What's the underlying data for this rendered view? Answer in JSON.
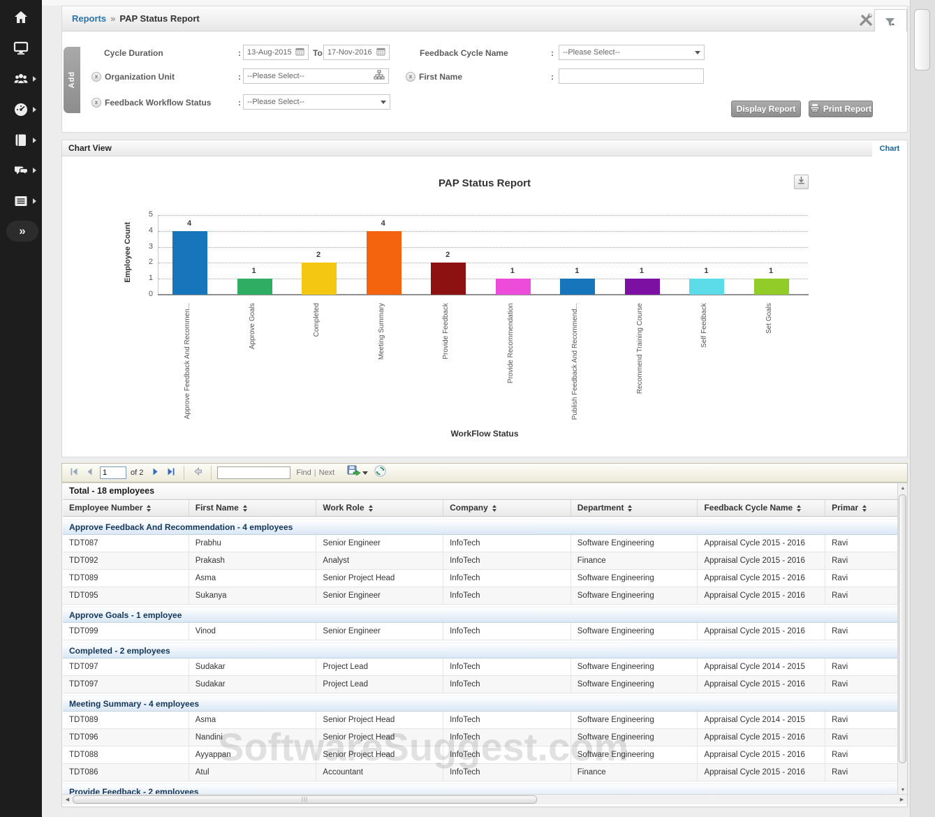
{
  "sidebar": {
    "items": [
      {
        "icon": "home-icon",
        "has_submenu": false
      },
      {
        "icon": "monitor-icon",
        "has_submenu": false
      },
      {
        "icon": "people-icon",
        "has_submenu": true
      },
      {
        "icon": "dashboard-gauge-icon",
        "has_submenu": true
      },
      {
        "icon": "book-icon",
        "has_submenu": true
      },
      {
        "icon": "chat-icon",
        "has_submenu": true
      },
      {
        "icon": "news-list-icon",
        "has_submenu": true
      }
    ],
    "collapse_glyph": "»"
  },
  "header": {
    "breadcrumb_section": "Reports",
    "breadcrumb_separator": "»",
    "breadcrumb_page": "PAP Status Report"
  },
  "filters": {
    "add_tab_label": "Add",
    "colon": ":",
    "cycle_duration": {
      "label": "Cycle Duration",
      "from_value": "13-Aug-2015",
      "to_label": "To",
      "to_value": "17-Nov-2016"
    },
    "feedback_cycle_name": {
      "label": "Feedback Cycle Name",
      "value": "--Please Select--"
    },
    "organization_unit": {
      "label": "Organization Unit",
      "value": "--Please Select--"
    },
    "first_name": {
      "label": "First Name",
      "value": ""
    },
    "feedback_workflow_status": {
      "label": "Feedback Workflow Status",
      "value": "--Please Select--"
    },
    "display_report_label": "Display Report",
    "print_report_label": "Print Report"
  },
  "chart_section": {
    "panel_title": "Chart View",
    "chart_link": "Chart"
  },
  "chart_data": {
    "type": "bar",
    "title": "PAP Status Report",
    "xlabel": "WorkFlow Status",
    "ylabel": "Employee Count",
    "ylim": [
      0,
      5
    ],
    "yticks": [
      0,
      1,
      2,
      3,
      4,
      5
    ],
    "grid": "dotted-horizontal",
    "legend": "none",
    "categories": [
      "Approve Feedback And Recommen...",
      "Approve Goals",
      "Completed",
      "Meeting Summary",
      "Provide Feedback",
      "Provide Recommendation",
      "Publish Feedback And Recommend...",
      "Recommend Training Course",
      "Self Feedback",
      "Set Goals"
    ],
    "values": [
      4,
      1,
      2,
      4,
      2,
      1,
      1,
      1,
      1,
      1
    ],
    "colors": [
      "#1776bb",
      "#2ead63",
      "#f3c712",
      "#f4640e",
      "#8e1111",
      "#ed4cdb",
      "#1776bb",
      "#7b10a2",
      "#5cdbe9",
      "#91cc29"
    ]
  },
  "toolbar": {
    "page_input": "1",
    "of_pages": "of 2",
    "search_value": "",
    "find_label": "Find",
    "separator": "|",
    "next_label": "Next"
  },
  "table": {
    "total_header": "Total - 18 employees",
    "columns": [
      "Employee Number",
      "First Name",
      "Work Role",
      "Company",
      "Department",
      "Feedback Cycle Name",
      "Primar"
    ],
    "groups": [
      {
        "header": "Approve Feedback And Recommendation - 4 employees",
        "rows": [
          [
            "TDT087",
            "Prabhu",
            "Senior Engineer",
            "InfoTech",
            "Software Engineering",
            "Appraisal Cycle 2015 - 2016",
            "Ravi"
          ],
          [
            "TDT092",
            "Prakash",
            "Analyst",
            "InfoTech",
            "Finance",
            "Appraisal Cycle 2015 - 2016",
            "Ravi"
          ],
          [
            "TDT089",
            "Asma",
            "Senior Project Head",
            "InfoTech",
            "Software Engineering",
            "Appraisal Cycle 2015 - 2016",
            "Ravi"
          ],
          [
            "TDT095",
            "Sukanya",
            "Senior Engineer",
            "InfoTech",
            "Software Engineering",
            "Appraisal Cycle 2015 - 2016",
            "Ravi"
          ]
        ]
      },
      {
        "header": "Approve Goals - 1 employee",
        "rows": [
          [
            "TDT099",
            "Vinod",
            "Senior Engineer",
            "InfoTech",
            "Software Engineering",
            "Appraisal Cycle 2015 - 2016",
            "Ravi"
          ]
        ]
      },
      {
        "header": "Completed - 2 employees",
        "rows": [
          [
            "TDT097",
            "Sudakar",
            "Project Lead",
            "InfoTech",
            "Software Engineering",
            "Appraisal Cycle 2014 - 2015",
            "Ravi"
          ],
          [
            "TDT097",
            "Sudakar",
            "Project Lead",
            "InfoTech",
            "Software Engineering",
            "Appraisal Cycle 2015 - 2016",
            "Ravi"
          ]
        ]
      },
      {
        "header": "Meeting Summary - 4 employees",
        "rows": [
          [
            "TDT089",
            "Asma",
            "Senior Project Head",
            "InfoTech",
            "Software Engineering",
            "Appraisal Cycle 2014 - 2015",
            "Ravi"
          ],
          [
            "TDT096",
            "Nandini",
            "Senior Project Head",
            "InfoTech",
            "Software Engineering",
            "Appraisal Cycle 2015 - 2016",
            "Ravi"
          ],
          [
            "TDT088",
            "Ayyappan",
            "Senior Project Head",
            "InfoTech",
            "Software Engineering",
            "Appraisal Cycle 2015 - 2016",
            "Ravi"
          ],
          [
            "TDT086",
            "Atul",
            "Accountant",
            "InfoTech",
            "Finance",
            "Appraisal Cycle 2015 - 2016",
            "Ravi"
          ]
        ]
      },
      {
        "header": "Provide Feedback - 2 employees",
        "rows": []
      }
    ],
    "watermark": "SoftwareSuggest.com"
  }
}
